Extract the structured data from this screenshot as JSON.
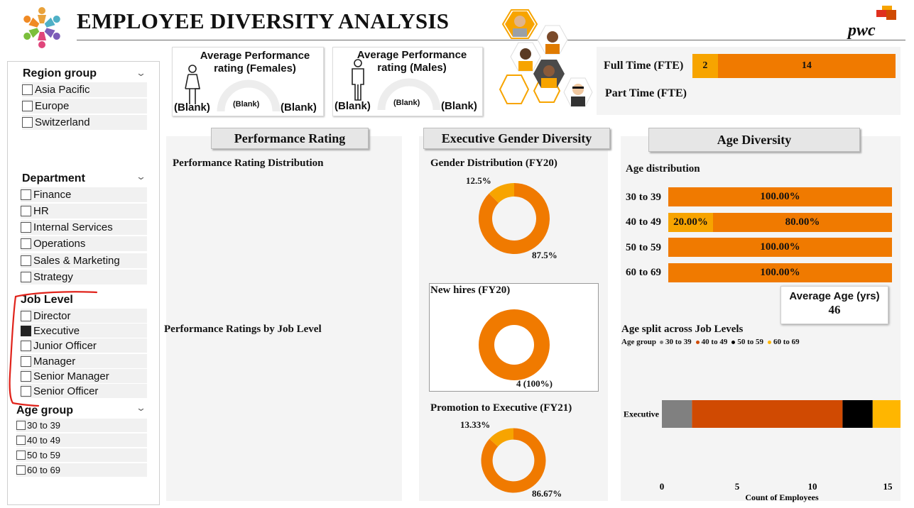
{
  "header": {
    "title": "EMPLOYEE DIVERSITY ANALYSIS",
    "brand": "pwc"
  },
  "slicers": {
    "region": {
      "title": "Region group",
      "options": [
        "Asia Pacific",
        "Europe",
        "Switzerland"
      ]
    },
    "department": {
      "title": "Department",
      "options": [
        "Finance",
        "HR",
        "Internal Services",
        "Operations",
        "Sales & Marketing",
        "Strategy"
      ]
    },
    "job_level": {
      "title": "Job Level",
      "options": [
        "Director",
        "Executive",
        "Junior Officer",
        "Manager",
        "Senior Manager",
        "Senior Officer"
      ],
      "selected": "Executive"
    },
    "age_group": {
      "title": "Age group",
      "options": [
        "30 to 39",
        "40 to 49",
        "50 to 59",
        "60 to 69"
      ]
    }
  },
  "kpis": {
    "females": {
      "title": "Average Performance rating (Females)",
      "left": "(Blank)",
      "mid": "(Blank)",
      "right": "(Blank)"
    },
    "males": {
      "title": "Average Performance rating (Males)",
      "left": "(Blank)",
      "mid": "(Blank)",
      "right": "(Blank)"
    }
  },
  "fte": {
    "full_time_label": "Full Time (FTE)",
    "part_time_label": "Part Time (FTE)",
    "full_time_values": [
      2,
      14
    ],
    "full_time_labels": [
      "2",
      "14"
    ]
  },
  "performance": {
    "tab": "Performance Rating",
    "distribution_title": "Performance Rating Distribution",
    "by_level_title": "Performance Ratings by Job Level"
  },
  "exec_gender": {
    "tab": "Executive Gender Diversity",
    "gender_title": "Gender Distribution (FY20)",
    "gender_small_label": "12.5%",
    "gender_large_label": "87.5%",
    "newhires_title": "New hires (FY20)",
    "newhires_label": "4 (100%)",
    "promotion_title": "Promotion to Executive (FY21)",
    "promotion_small_label": "13.33%",
    "promotion_large_label": "86.67%"
  },
  "age": {
    "tab": "Age Diversity",
    "distribution_title": "Age distribution",
    "rows": [
      {
        "label": "30 to 39",
        "segments": [
          {
            "value": 100.0,
            "text": "100.00%",
            "color": "#f07a00"
          }
        ]
      },
      {
        "label": "40 to 49",
        "segments": [
          {
            "value": 20.0,
            "text": "20.00%",
            "color": "#f7a400"
          },
          {
            "value": 80.0,
            "text": "80.00%",
            "color": "#f07a00"
          }
        ]
      },
      {
        "label": "50 to 59",
        "segments": [
          {
            "value": 100.0,
            "text": "100.00%",
            "color": "#f07a00"
          }
        ]
      },
      {
        "label": "60 to 69",
        "segments": [
          {
            "value": 100.0,
            "text": "100.00%",
            "color": "#f07a00"
          }
        ]
      }
    ],
    "avg_age_title": "Average Age (yrs)",
    "avg_age_value": "46",
    "split_title": "Age split across Job Levels",
    "legend_title": "Age group",
    "legend": [
      {
        "label": "30 to 39",
        "color": "#808080"
      },
      {
        "label": "40 to 49",
        "color": "#d04a02"
      },
      {
        "label": "50 to 59",
        "color": "#000000"
      },
      {
        "label": "60 to 69",
        "color": "#ffb600"
      }
    ],
    "xlabel": "Count of Employees"
  },
  "colors": {
    "orange": "#f07a00",
    "amber": "#f7a400",
    "dark_orange": "#d04a02",
    "panel_bg": "#f4f4f4"
  },
  "chart_data": [
    {
      "type": "pie",
      "title": "Gender Distribution (FY20)",
      "values": [
        12.5,
        87.5
      ],
      "labels": [
        "12.5%",
        "87.5%"
      ],
      "colors": [
        "#f7a400",
        "#f07a00"
      ]
    },
    {
      "type": "pie",
      "title": "New hires (FY20)",
      "values": [
        4
      ],
      "labels": [
        "4 (100%)"
      ],
      "colors": [
        "#f07a00"
      ]
    },
    {
      "type": "pie",
      "title": "Promotion to Executive (FY21)",
      "values": [
        13.33,
        86.67
      ],
      "labels": [
        "13.33%",
        "86.67%"
      ],
      "colors": [
        "#f7a400",
        "#f07a00"
      ]
    },
    {
      "type": "bar",
      "title": "Age split across Job Levels",
      "categories": [
        "Executive"
      ],
      "series": [
        {
          "name": "30 to 39",
          "values": [
            2
          ]
        },
        {
          "name": "40 to 49",
          "values": [
            10
          ]
        },
        {
          "name": "50 to 59",
          "values": [
            2
          ]
        },
        {
          "name": "60 to 69",
          "values": [
            2
          ]
        }
      ],
      "xlabel": "Count of Employees",
      "xlim": [
        0,
        15
      ],
      "xticks": [
        "0",
        "5",
        "10",
        "15"
      ]
    }
  ]
}
